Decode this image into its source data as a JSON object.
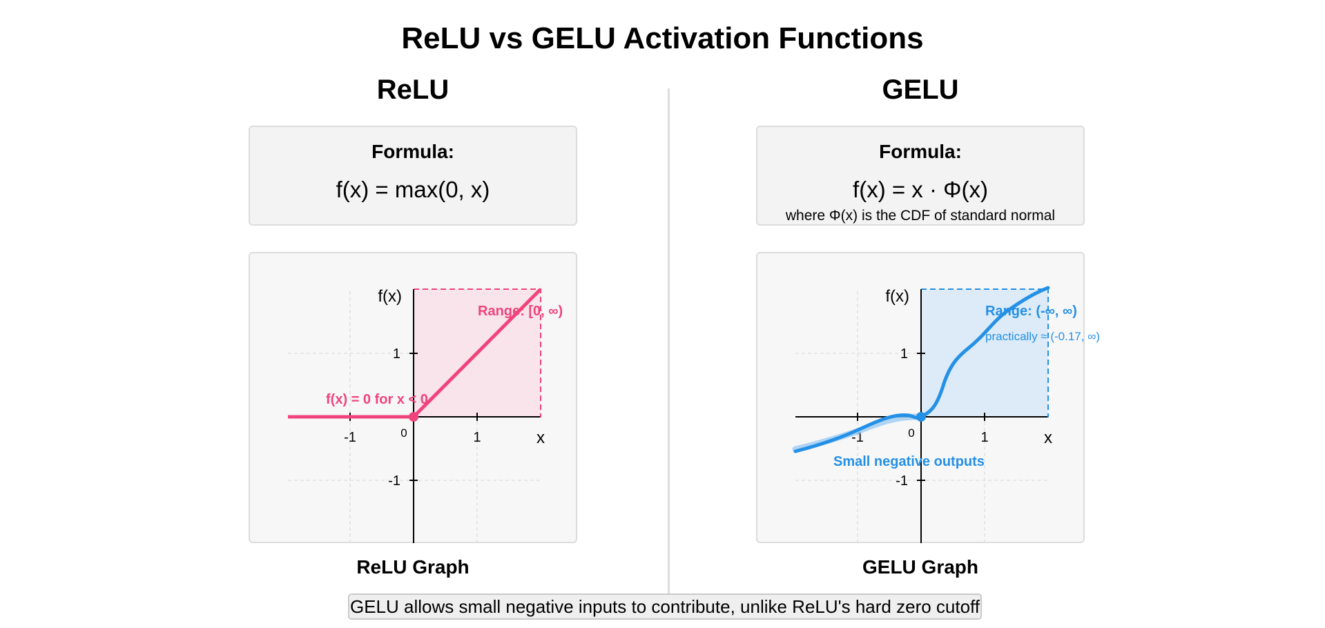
{
  "title": "ReLU vs GELU Activation Functions",
  "colors": {
    "relu": "#f0437c",
    "relu_fill": "#f8e4ea",
    "gelu": "#2490e6",
    "gelu_fill": "#dcebf7",
    "panel_bg": "#f7f7f7",
    "divider": "#dddddd"
  },
  "relu": {
    "heading": "ReLU",
    "formula_heading": "Formula:",
    "formula": "f(x) = max(0, x)",
    "graph_caption": "ReLU Graph",
    "y_axis_label": "f(x)",
    "x_axis_label": "x",
    "range_label": "Range: [0, ∞)",
    "zero_note": "f(x) = 0 for x < 0",
    "x_ticks": [
      "-1",
      "0",
      "1"
    ],
    "y_ticks": [
      "1",
      "-1"
    ]
  },
  "gelu": {
    "heading": "GELU",
    "formula_heading": "Formula:",
    "formula": "f(x) = x · Φ(x)",
    "formula_note": "where Φ(x) is the CDF of standard normal",
    "graph_caption": "GELU Graph",
    "y_axis_label": "f(x)",
    "x_axis_label": "x",
    "range_label": "Range: (-∞, ∞)",
    "range_note": "practically ≈ (-0.17, ∞)",
    "negative_note": "Small negative outputs",
    "x_ticks": [
      "-1",
      "0",
      "1"
    ],
    "y_ticks": [
      "1",
      "-1"
    ]
  },
  "footnote": "GELU allows small negative inputs to contribute, unlike ReLU's hard zero cutoff"
}
